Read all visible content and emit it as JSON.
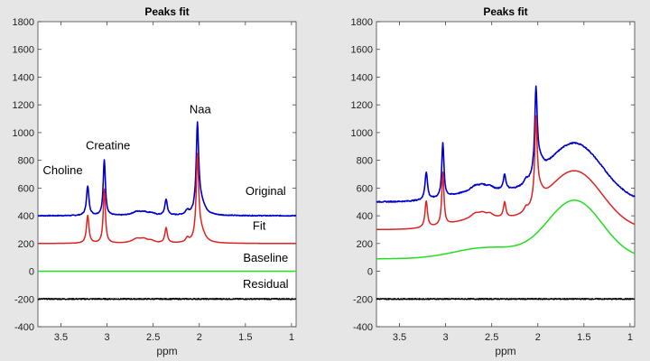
{
  "chart_data": [
    {
      "type": "line",
      "title": "Peaks fit",
      "xlabel": "ppm",
      "ylabel": "",
      "xlim": [
        3.75,
        0.95
      ],
      "ylim": [
        -400,
        1800
      ],
      "xticks": [
        3.5,
        3,
        2.5,
        2,
        1.5,
        1
      ],
      "xtick_labels": [
        "3.5",
        "3",
        "2.5",
        "2",
        "1.5",
        "1"
      ],
      "yticks": [
        -400,
        -200,
        0,
        200,
        400,
        600,
        800,
        1000,
        1200,
        1400,
        1600,
        1800
      ],
      "ytick_labels": [
        "-400",
        "-200",
        "0",
        "200",
        "400",
        "600",
        "800",
        "1000",
        "1200",
        "1400",
        "1600",
        "1800"
      ],
      "annotations": [
        {
          "text": "Choline",
          "ppm": 3.48,
          "value": 700
        },
        {
          "text": "Creatine",
          "ppm": 2.99,
          "value": 880
        },
        {
          "text": "Naa",
          "ppm": 1.99,
          "value": 1140
        },
        {
          "text": "Original",
          "ppm": 1.28,
          "value": 550
        },
        {
          "text": "Fit",
          "ppm": 1.35,
          "value": 300
        },
        {
          "text": "Baseline",
          "ppm": 1.28,
          "value": 70
        },
        {
          "text": "Residual",
          "ppm": 1.28,
          "value": -120
        }
      ],
      "series": [
        {
          "name": "Original",
          "color": "#0000cc",
          "baseline": 400,
          "hump": 0,
          "noise": 6,
          "peaks": [
            [
              3.21,
              210,
              0.016
            ],
            [
              3.03,
              400,
              0.014
            ],
            [
              2.68,
              25,
              0.06
            ],
            [
              2.6,
              20,
              0.05
            ],
            [
              2.52,
              15,
              0.04
            ],
            [
              2.36,
              115,
              0.016
            ],
            [
              2.13,
              30,
              0.02
            ],
            [
              2.02,
              620,
              0.016
            ],
            [
              1.98,
              90,
              0.05
            ]
          ]
        },
        {
          "name": "Fit",
          "color": "#dd2222",
          "baseline": 200,
          "hump": 0,
          "noise": 0,
          "peaks": [
            [
              3.21,
              200,
              0.016
            ],
            [
              3.03,
              390,
              0.014
            ],
            [
              2.68,
              30,
              0.06
            ],
            [
              2.6,
              25,
              0.05
            ],
            [
              2.52,
              15,
              0.04
            ],
            [
              2.36,
              110,
              0.016
            ],
            [
              2.13,
              30,
              0.02
            ],
            [
              2.02,
              600,
              0.016
            ],
            [
              1.98,
              80,
              0.05
            ]
          ]
        },
        {
          "name": "Baseline",
          "color": "#22dd22",
          "baseline": 0,
          "hump": 0,
          "noise": 0,
          "peaks": []
        },
        {
          "name": "Residual",
          "color": "#000000",
          "baseline": -200,
          "hump": 0,
          "noise": 7,
          "peaks": []
        }
      ]
    },
    {
      "type": "line",
      "title": "Peaks fit",
      "xlabel": "ppm",
      "ylabel": "",
      "xlim": [
        3.75,
        0.95
      ],
      "ylim": [
        -400,
        1800
      ],
      "xticks": [
        3.5,
        3,
        2.5,
        2,
        1.5,
        1
      ],
      "xtick_labels": [
        "3.5",
        "3",
        "2.5",
        "2",
        "1.5",
        "1"
      ],
      "yticks": [
        -400,
        -200,
        0,
        200,
        400,
        600,
        800,
        1000,
        1200,
        1400,
        1600,
        1800
      ],
      "ytick_labels": [
        "-400",
        "-200",
        "0",
        "200",
        "400",
        "600",
        "800",
        "1000",
        "1200",
        "1400",
        "1600",
        "1800"
      ],
      "annotations": [],
      "series": [
        {
          "name": "Original",
          "color": "#0000cc",
          "baseline": 500,
          "hump": 1,
          "noise": 8,
          "peaks": [
            [
              3.21,
              200,
              0.016
            ],
            [
              3.03,
              390,
              0.014
            ],
            [
              2.68,
              35,
              0.06
            ],
            [
              2.6,
              30,
              0.05
            ],
            [
              2.52,
              25,
              0.04
            ],
            [
              2.36,
              110,
              0.016
            ],
            [
              2.13,
              30,
              0.02
            ],
            [
              2.02,
              600,
              0.016
            ],
            [
              1.98,
              90,
              0.05
            ]
          ]
        },
        {
          "name": "Fit",
          "color": "#dd2222",
          "baseline": 300,
          "hump": 1,
          "noise": 0,
          "peaks": [
            [
              3.21,
              190,
              0.016
            ],
            [
              3.03,
              380,
              0.014
            ],
            [
              2.68,
              35,
              0.06
            ],
            [
              2.6,
              30,
              0.05
            ],
            [
              2.52,
              25,
              0.04
            ],
            [
              2.36,
              110,
              0.016
            ],
            [
              2.13,
              30,
              0.02
            ],
            [
              2.02,
              590,
              0.016
            ],
            [
              1.98,
              80,
              0.05
            ]
          ]
        },
        {
          "name": "Baseline",
          "color": "#22dd22",
          "baseline": 90,
          "hump": 1,
          "noise": 0,
          "peaks": []
        },
        {
          "name": "Residual",
          "color": "#000000",
          "baseline": -200,
          "hump": 0,
          "noise": 7,
          "peaks": []
        }
      ]
    }
  ]
}
